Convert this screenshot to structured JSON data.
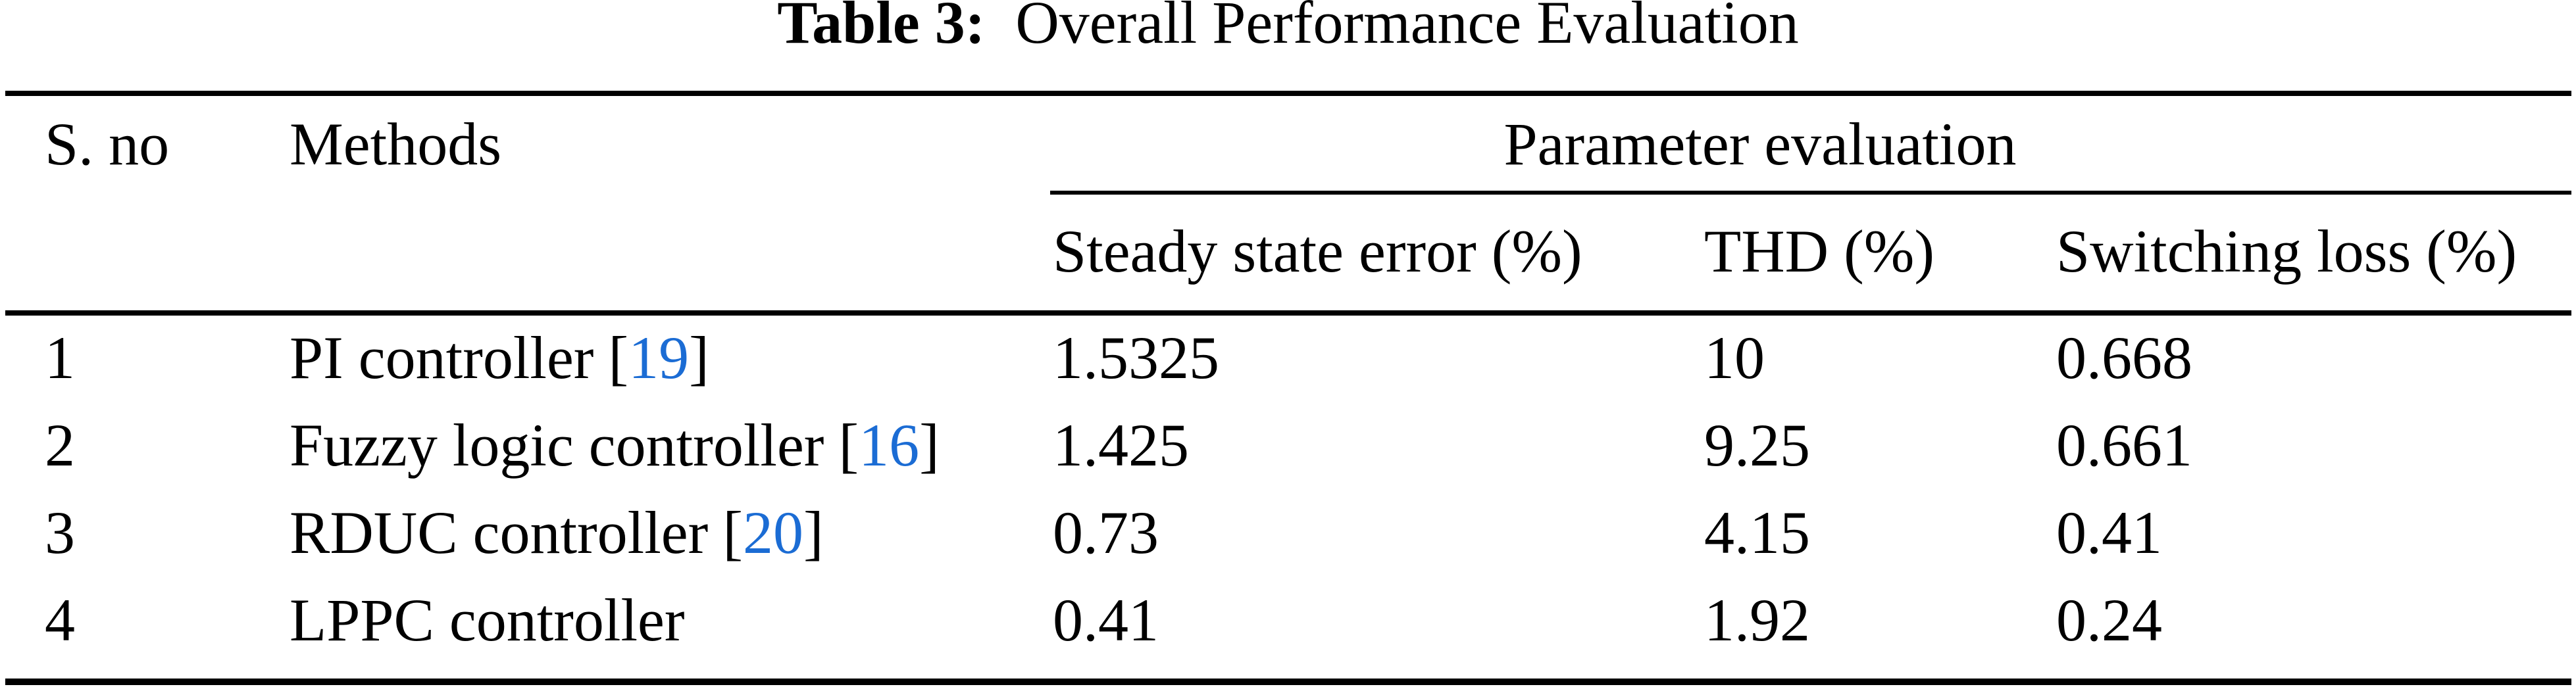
{
  "page": {
    "background": "#ffffff",
    "text_color": "#000000",
    "link_color": "#1b6cd4"
  },
  "caption": {
    "label": "Table 3:",
    "title": "Overall Performance Evaluation"
  },
  "table": {
    "header": {
      "sno": "S. no",
      "methods": "Methods",
      "param_group": "Parameter evaluation",
      "steady_state_error": "Steady state error (%)",
      "thd": "THD (%)",
      "switching_loss": "Switching loss (%)"
    },
    "rows": [
      {
        "sno": "1",
        "method": "PI controller",
        "citation": {
          "open": "[",
          "num": "19",
          "close": "]"
        },
        "steady_state_error": "1.5325",
        "thd": "10",
        "switching_loss": "0.668"
      },
      {
        "sno": "2",
        "method": "Fuzzy logic controller",
        "citation": {
          "open": "[",
          "num": "16",
          "close": "]"
        },
        "steady_state_error": "1.425",
        "thd": "9.25",
        "switching_loss": "0.661"
      },
      {
        "sno": "3",
        "method": "RDUC controller",
        "citation": {
          "open": "[",
          "num": "20",
          "close": "]"
        },
        "steady_state_error": "0.73",
        "thd": "4.15",
        "switching_loss": "0.41"
      },
      {
        "sno": "4",
        "method": "LPPC controller",
        "steady_state_error": "0.41",
        "thd": "1.92",
        "switching_loss": "0.24"
      }
    ]
  }
}
